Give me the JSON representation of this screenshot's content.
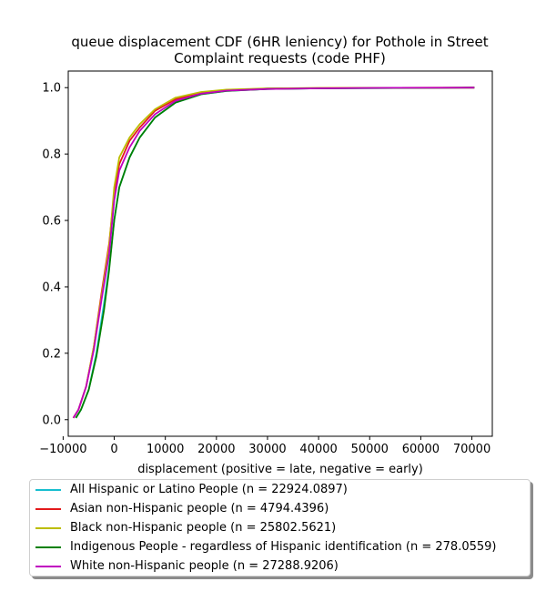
{
  "chart_data": {
    "type": "line",
    "title_lines": [
      "queue displacement CDF (6HR leniency) for Pothole in Street",
      "Complaint  requests (code PHF)"
    ],
    "xlabel": "displacement (positive = late, negative = early)",
    "ylabel": "",
    "xlim": [
      -9000,
      74000
    ],
    "ylim": [
      -0.05,
      1.05
    ],
    "x_ticks": [
      -10000,
      0,
      10000,
      20000,
      30000,
      40000,
      50000,
      60000,
      70000
    ],
    "x_tick_labels": [
      "−10000",
      "0",
      "10000",
      "20000",
      "30000",
      "40000",
      "50000",
      "60000",
      "70000"
    ],
    "y_ticks": [
      0.0,
      0.2,
      0.4,
      0.6,
      0.8,
      1.0
    ],
    "y_tick_labels": [
      "0.0",
      "0.2",
      "0.4",
      "0.6",
      "0.8",
      "1.0"
    ],
    "grid": false,
    "legend_position": "below",
    "series": [
      {
        "name": "All Hispanic or Latino People (n = 22924.0897)",
        "color": "#17becf",
        "x": [
          -7500,
          -6500,
          -5000,
          -3500,
          -2000,
          -1000,
          0,
          1000,
          3000,
          5000,
          8000,
          12000,
          17000,
          22000,
          30000,
          40000,
          55000,
          70500
        ],
        "y": [
          0.005,
          0.03,
          0.09,
          0.2,
          0.35,
          0.46,
          0.6,
          0.7,
          0.79,
          0.85,
          0.91,
          0.955,
          0.98,
          0.99,
          0.996,
          0.998,
          0.999,
          1.0
        ]
      },
      {
        "name": "Asian non-Hispanic people (n = 4794.4396)",
        "color": "#e31a1c",
        "x": [
          -8000,
          -7000,
          -5500,
          -4000,
          -2500,
          -1000,
          0,
          1000,
          3000,
          5000,
          8000,
          12000,
          17000,
          22000,
          30000,
          40000,
          55000,
          70500
        ],
        "y": [
          0.005,
          0.03,
          0.1,
          0.22,
          0.38,
          0.53,
          0.68,
          0.77,
          0.84,
          0.88,
          0.93,
          0.965,
          0.985,
          0.993,
          0.997,
          0.999,
          0.9995,
          1.0
        ]
      },
      {
        "name": "Black non-Hispanic people (n = 25802.5621)",
        "color": "#bcbd00",
        "x": [
          -8000,
          -7000,
          -5500,
          -4000,
          -2500,
          -1000,
          0,
          1000,
          3000,
          5000,
          8000,
          12000,
          17000,
          22000,
          30000,
          40000,
          55000,
          70500
        ],
        "y": [
          0.005,
          0.03,
          0.1,
          0.22,
          0.37,
          0.52,
          0.7,
          0.79,
          0.85,
          0.89,
          0.935,
          0.97,
          0.987,
          0.994,
          0.998,
          0.999,
          0.9995,
          1.0
        ]
      },
      {
        "name": "Indigenous People - regardless of Hispanic identification (n = 278.0559)",
        "color": "#008000",
        "x": [
          -7500,
          -6500,
          -5000,
          -3500,
          -2000,
          -1000,
          0,
          1000,
          3000,
          5000,
          8000,
          12000,
          17000,
          22000,
          30000,
          40000,
          55000,
          70500
        ],
        "y": [
          0.005,
          0.03,
          0.09,
          0.19,
          0.33,
          0.45,
          0.6,
          0.7,
          0.79,
          0.85,
          0.91,
          0.955,
          0.98,
          0.99,
          0.996,
          0.998,
          0.999,
          1.0
        ]
      },
      {
        "name": "White non-Hispanic people (n = 27288.9206)",
        "color": "#c000c0",
        "x": [
          -8000,
          -7000,
          -5500,
          -4000,
          -2500,
          -1000,
          0,
          1000,
          3000,
          5000,
          8000,
          12000,
          17000,
          22000,
          30000,
          40000,
          55000,
          70500
        ],
        "y": [
          0.005,
          0.03,
          0.1,
          0.21,
          0.36,
          0.5,
          0.66,
          0.75,
          0.82,
          0.87,
          0.92,
          0.96,
          0.982,
          0.991,
          0.996,
          0.998,
          0.9995,
          1.0
        ]
      }
    ]
  }
}
